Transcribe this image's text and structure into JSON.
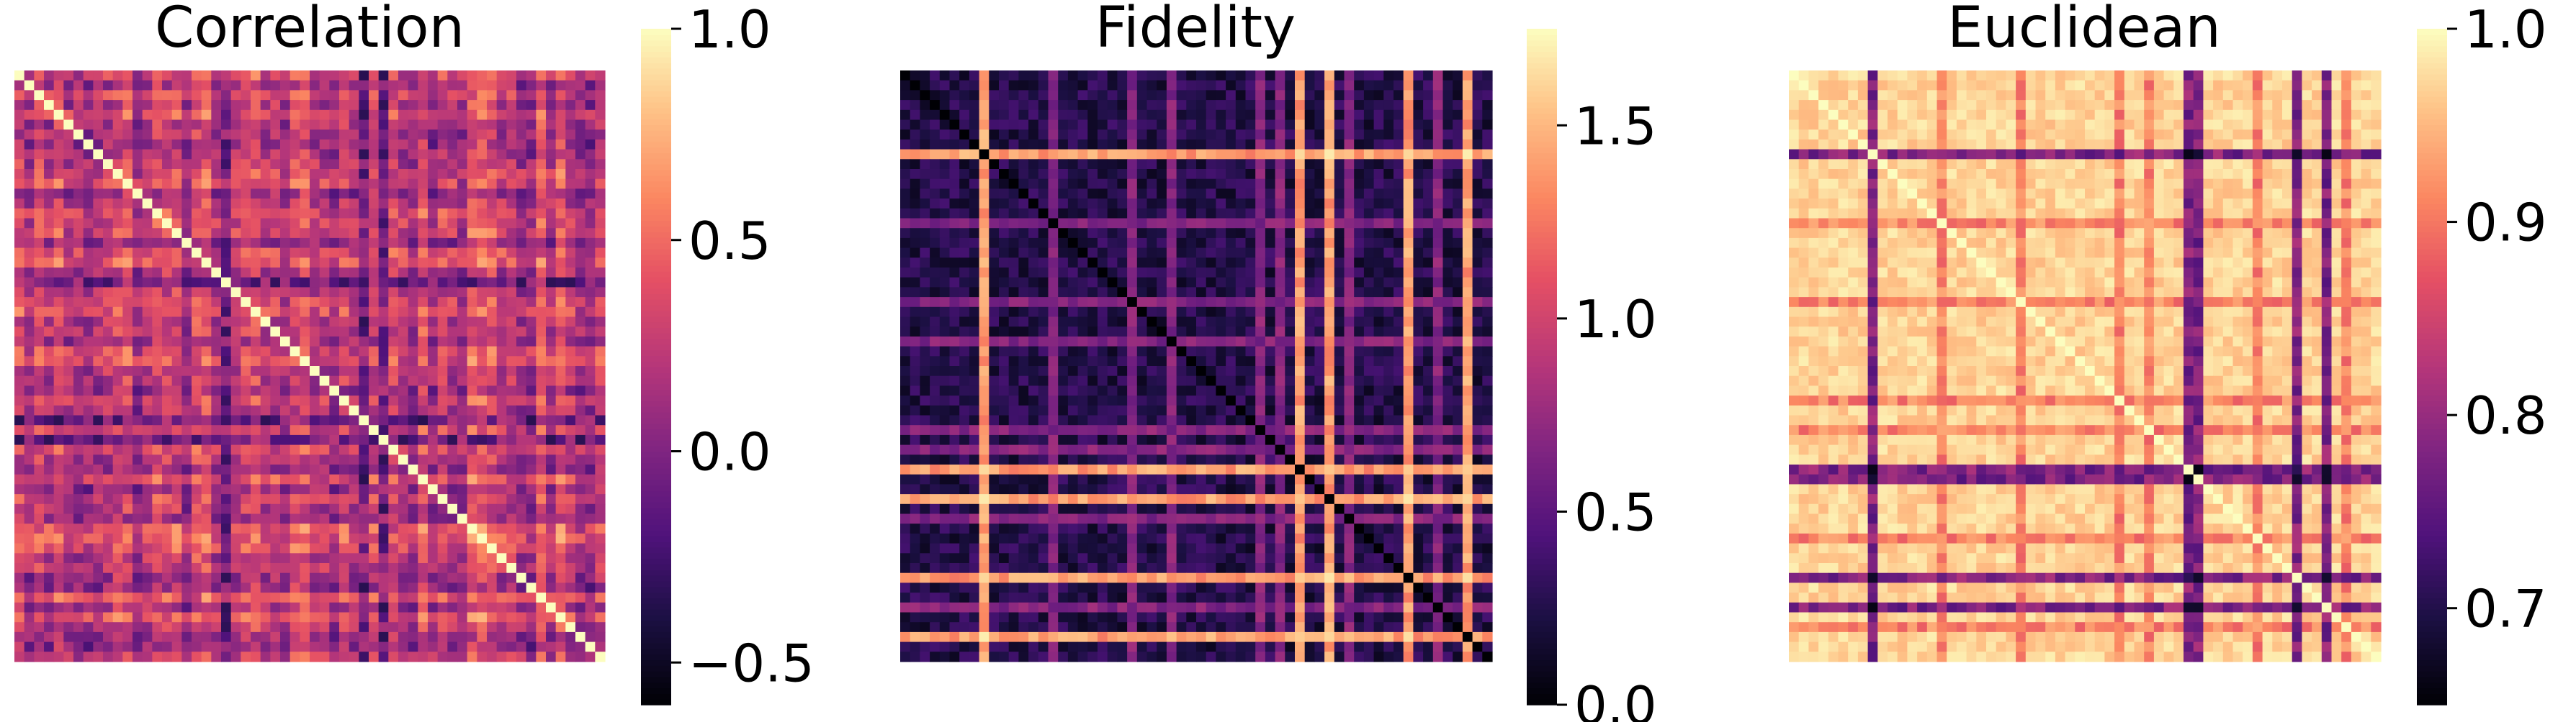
{
  "chart_data": [
    {
      "type": "heatmap",
      "title": "Correlation",
      "matrix_size": 60,
      "colormap": "magma",
      "colorbar": {
        "range": [
          -0.6,
          1.0
        ],
        "ticks": [
          {
            "value": 1.0,
            "label": "1.0"
          },
          {
            "value": 0.5,
            "label": "0.5"
          },
          {
            "value": 0.0,
            "label": "0.0"
          },
          {
            "value": -0.5,
            "label": "−0.5"
          }
        ]
      },
      "diagonal_value": 1.0,
      "off_diagonal_typical_range": [
        -0.3,
        0.8
      ],
      "strongly_negative_rows_cols": [
        21,
        35,
        37
      ],
      "low_contrast_rows_cols": [
        2,
        12,
        18,
        30,
        31,
        38,
        51
      ]
    },
    {
      "type": "heatmap",
      "title": "Fidelity",
      "matrix_size": 60,
      "colormap": "magma",
      "colorbar": {
        "range": [
          0.0,
          1.75
        ],
        "ticks": [
          {
            "value": 1.5,
            "label": "1.5"
          },
          {
            "value": 1.0,
            "label": "1.0"
          },
          {
            "value": 0.5,
            "label": "0.5"
          },
          {
            "value": 0.0,
            "label": "0.0"
          }
        ]
      },
      "diagonal_value": 0.0,
      "off_diagonal_typical_range": [
        0.1,
        0.4
      ],
      "high_distance_rows_cols": [
        8,
        40,
        43,
        51,
        57
      ],
      "medium_distance_rows_cols": [
        15,
        23,
        27,
        36,
        38,
        45,
        54
      ]
    },
    {
      "type": "heatmap",
      "title": "Euclidean",
      "matrix_size": 60,
      "colormap": "magma",
      "colorbar": {
        "range": [
          0.65,
          1.0
        ],
        "ticks": [
          {
            "value": 1.0,
            "label": "1.0"
          },
          {
            "value": 0.9,
            "label": "0.9"
          },
          {
            "value": 0.8,
            "label": "0.8"
          },
          {
            "value": 0.7,
            "label": "0.7"
          }
        ]
      },
      "diagonal_value": 1.0,
      "off_diagonal_typical_range": [
        0.95,
        0.99
      ],
      "low_value_rows_cols": [
        8,
        40,
        41,
        51,
        54
      ],
      "medium_value_rows_cols": [
        15,
        23,
        33,
        36,
        47,
        56
      ]
    }
  ]
}
